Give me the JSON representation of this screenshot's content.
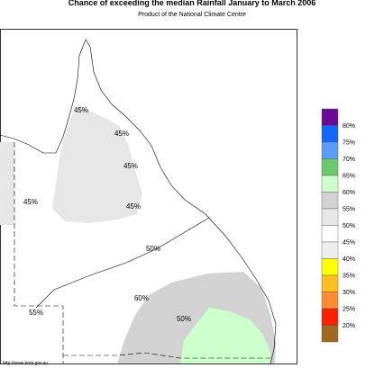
{
  "title": "Chance of exceeding the median Rainfall January to March 2006",
  "subtitle": "Product of the National Climate Centre",
  "contour_labels": [
    "45%",
    "45%",
    "45%",
    "45%",
    "45%",
    "50%",
    "55%",
    "60%",
    "50%"
  ],
  "legend": {
    "labels": [
      "80%",
      "75%",
      "70%",
      "65%",
      "60%",
      "55%",
      "50%",
      "45%",
      "40%",
      "35%",
      "30%",
      "25%",
      "20%"
    ],
    "colors": [
      "#6a0a96",
      "#1468ff",
      "#5c9cff",
      "#6cc86c",
      "#ccffcc",
      "#d2d2d2",
      "#e6e6e6",
      "#ffffff",
      "#eeeeee",
      "#ffff00",
      "#ffc020",
      "#ff8c30",
      "#ff2000",
      "#a06820"
    ]
  },
  "footer": "http://www.bom.gov.au"
}
